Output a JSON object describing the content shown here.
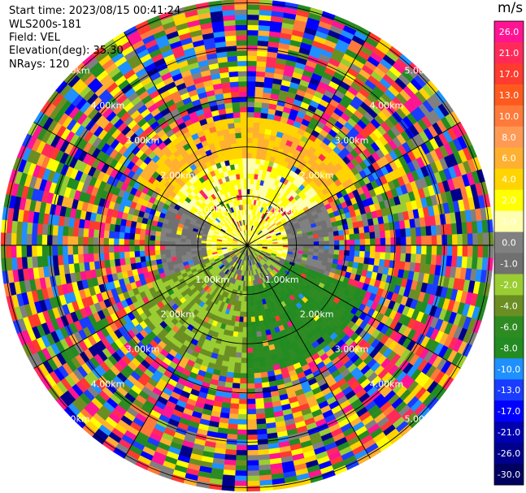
{
  "header": {
    "start_time": "Start time: 2023/08/15 00:41:24",
    "site": "WLS200s-181",
    "field": "Field: VEL",
    "elevation": "Elevation(deg): 35.30",
    "nrays": "NRays: 120"
  },
  "chart_data": {
    "type": "heatmap",
    "projection": "polar-ppi",
    "field": "VEL",
    "units": "m/s",
    "nrays": 120,
    "max_range_km": 5.0,
    "range_rings_km": [
      1.0,
      2.0,
      3.0,
      4.0,
      5.0
    ],
    "range_ring_labels": [
      "1.00km",
      "2.00km",
      "3.00km",
      "4.00km",
      "5.00km"
    ],
    "spokes_deg": [
      0,
      30,
      60,
      90,
      120,
      150,
      180,
      210,
      240,
      270,
      300,
      330
    ],
    "colorbar": {
      "unit_label": "m/s",
      "tick_labels": [
        "26.0",
        "21.0",
        "17.0",
        "13.0",
        "10.0",
        "8.0",
        "6.0",
        "4.0",
        "2.0",
        "1.0",
        "0.0",
        "-1.0",
        "-2.0",
        "-4.0",
        "-6.0",
        "-8.0",
        "-10.0",
        "-13.0",
        "-17.0",
        "-21.0",
        "-26.0",
        "-30.0"
      ],
      "colors": [
        "#ff1493",
        "#ff2a5a",
        "#ff3a2e",
        "#ff5a1e",
        "#ff7a3a",
        "#ff9a55",
        "#ffb030",
        "#ffd400",
        "#ffff00",
        "#ffffb0",
        "#808080",
        "#707070",
        "#9acd32",
        "#6b8e23",
        "#2e8b22",
        "#228b22",
        "#1e90ff",
        "#1a3cff",
        "#0000ff",
        "#0000b0",
        "#00008b",
        "#000060"
      ]
    },
    "regions": [
      {
        "range_km": [
          0.0,
          0.8
        ],
        "sector": "north",
        "mean_velocity_ms": 2.0
      },
      {
        "range_km": [
          0.0,
          0.8
        ],
        "sector": "south",
        "mean_velocity_ms": -1.0
      },
      {
        "range_km": [
          0.8,
          1.8
        ],
        "sector": "north",
        "mean_velocity_ms": 2.0
      },
      {
        "range_km": [
          0.8,
          1.8
        ],
        "sector": "east",
        "mean_velocity_ms": 0.0
      },
      {
        "range_km": [
          0.8,
          1.8
        ],
        "sector": "west",
        "mean_velocity_ms": 0.0
      },
      {
        "range_km": [
          0.8,
          2.2
        ],
        "sector": "south-east",
        "mean_velocity_ms": -6.0
      },
      {
        "range_km": [
          0.8,
          2.2
        ],
        "sector": "south-west",
        "mean_velocity_ms": -2.0
      },
      {
        "range_km": [
          1.8,
          2.6
        ],
        "sector": "north",
        "mean_velocity_ms": 6.0
      },
      {
        "range_km": [
          2.6,
          5.0
        ],
        "sector": "all",
        "mean_velocity_ms": null
      }
    ]
  }
}
